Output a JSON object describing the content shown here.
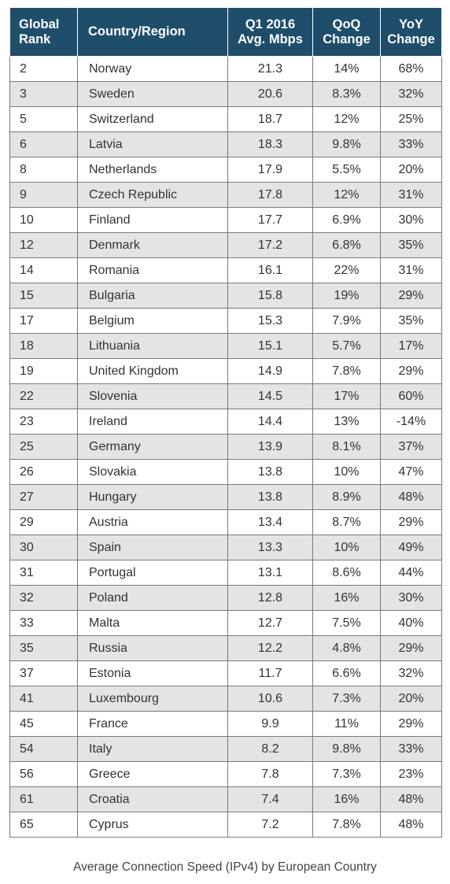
{
  "chart_data": {
    "type": "table",
    "columns": [
      "Global Rank",
      "Country/Region",
      "Q1 2016 Avg. Mbps",
      "QoQ Change",
      "YoY Change"
    ],
    "header_lines": [
      [
        "Global",
        "Rank"
      ],
      [
        "Country/Region"
      ],
      [
        "Q1 2016",
        "Avg. Mbps"
      ],
      [
        "QoQ",
        "Change"
      ],
      [
        "YoY",
        "Change"
      ]
    ],
    "rows": [
      [
        "2",
        "Norway",
        "21.3",
        "14%",
        "68%"
      ],
      [
        "3",
        "Sweden",
        "20.6",
        "8.3%",
        "32%"
      ],
      [
        "5",
        "Switzerland",
        "18.7",
        "12%",
        "25%"
      ],
      [
        "6",
        "Latvia",
        "18.3",
        "9.8%",
        "33%"
      ],
      [
        "8",
        "Netherlands",
        "17.9",
        "5.5%",
        "20%"
      ],
      [
        "9",
        "Czech Republic",
        "17.8",
        "12%",
        "31%"
      ],
      [
        "10",
        "Finland",
        "17.7",
        "6.9%",
        "30%"
      ],
      [
        "12",
        "Denmark",
        "17.2",
        "6.8%",
        "35%"
      ],
      [
        "14",
        "Romania",
        "16.1",
        "22%",
        "31%"
      ],
      [
        "15",
        "Bulgaria",
        "15.8",
        "19%",
        "29%"
      ],
      [
        "17",
        "Belgium",
        "15.3",
        "7.9%",
        "35%"
      ],
      [
        "18",
        "Lithuania",
        "15.1",
        "5.7%",
        "17%"
      ],
      [
        "19",
        "United Kingdom",
        "14.9",
        "7.8%",
        "29%"
      ],
      [
        "22",
        "Slovenia",
        "14.5",
        "17%",
        "60%"
      ],
      [
        "23",
        "Ireland",
        "14.4",
        "13%",
        "-14%"
      ],
      [
        "25",
        "Germany",
        "13.9",
        "8.1%",
        "37%"
      ],
      [
        "26",
        "Slovakia",
        "13.8",
        "10%",
        "47%"
      ],
      [
        "27",
        "Hungary",
        "13.8",
        "8.9%",
        "48%"
      ],
      [
        "29",
        "Austria",
        "13.4",
        "8.7%",
        "29%"
      ],
      [
        "30",
        "Spain",
        "13.3",
        "10%",
        "49%"
      ],
      [
        "31",
        "Portugal",
        "13.1",
        "8.6%",
        "44%"
      ],
      [
        "32",
        "Poland",
        "12.8",
        "16%",
        "30%"
      ],
      [
        "33",
        "Malta",
        "12.7",
        "7.5%",
        "40%"
      ],
      [
        "35",
        "Russia",
        "12.2",
        "4.8%",
        "29%"
      ],
      [
        "37",
        "Estonia",
        "11.7",
        "6.6%",
        "32%"
      ],
      [
        "41",
        "Luxembourg",
        "10.6",
        "7.3%",
        "20%"
      ],
      [
        "45",
        "France",
        "9.9",
        "11%",
        "29%"
      ],
      [
        "54",
        "Italy",
        "8.2",
        "9.8%",
        "33%"
      ],
      [
        "56",
        "Greece",
        "7.8",
        "7.3%",
        "23%"
      ],
      [
        "61",
        "Croatia",
        "7.4",
        "16%",
        "48%"
      ],
      [
        "65",
        "Cyprus",
        "7.2",
        "7.8%",
        "48%"
      ]
    ],
    "caption": "Average Connection Speed (IPv4) by European Country"
  },
  "colors": {
    "header_bg": "#1f4e6b",
    "header_text": "#ffffff",
    "stripe_bg": "#e3e4e6",
    "row_bg": "#ffffff",
    "border": "#7a7a7a",
    "text": "#333333"
  }
}
